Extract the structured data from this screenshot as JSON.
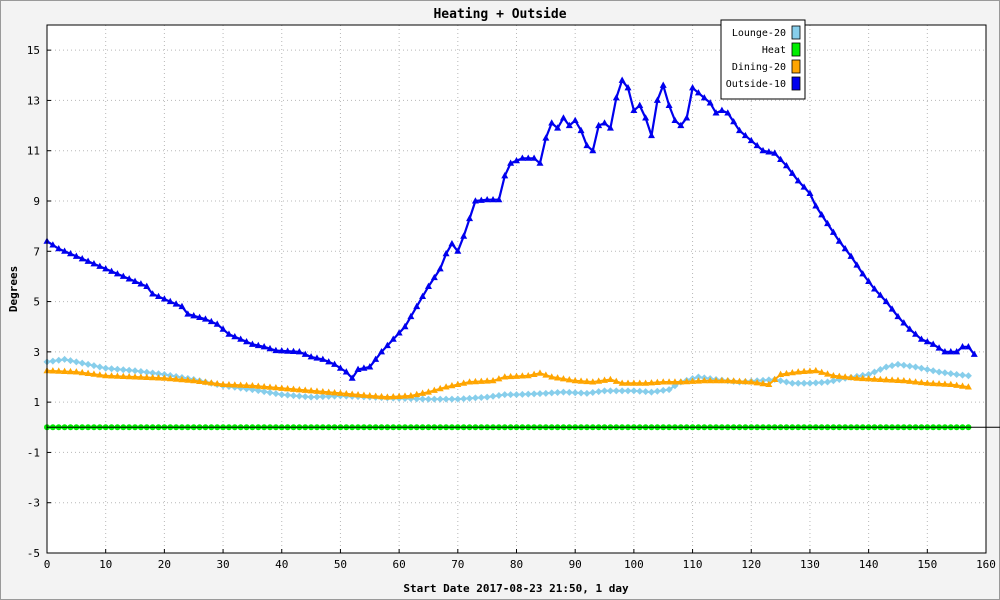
{
  "chart_data": {
    "type": "line",
    "title": "Heating + Outside",
    "xlabel": "Start Date 2017-08-23 21:50, 1 day",
    "ylabel": "Degrees",
    "xlim": [
      0,
      160
    ],
    "ylim": [
      -5,
      16
    ],
    "x_ticks": [
      0,
      10,
      20,
      30,
      40,
      50,
      60,
      70,
      80,
      90,
      100,
      110,
      120,
      130,
      140,
      150,
      160
    ],
    "y_ticks": [
      -5,
      -3,
      -1,
      1,
      3,
      5,
      7,
      9,
      11,
      13,
      15
    ],
    "grid": true,
    "legend_position": "top-right",
    "series": [
      {
        "name": "Lounge-20",
        "color": "#87ceeb",
        "points": [
          [
            0,
            2.6
          ],
          [
            3,
            2.7
          ],
          [
            5,
            2.6
          ],
          [
            10,
            2.35
          ],
          [
            15,
            2.25
          ],
          [
            20,
            2.1
          ],
          [
            25,
            1.9
          ],
          [
            30,
            1.65
          ],
          [
            35,
            1.5
          ],
          [
            40,
            1.3
          ],
          [
            45,
            1.2
          ],
          [
            50,
            1.25
          ],
          [
            55,
            1.2
          ],
          [
            60,
            1.15
          ],
          [
            65,
            1.12
          ],
          [
            70,
            1.12
          ],
          [
            75,
            1.2
          ],
          [
            78,
            1.3
          ],
          [
            80,
            1.3
          ],
          [
            85,
            1.35
          ],
          [
            88,
            1.4
          ],
          [
            92,
            1.35
          ],
          [
            95,
            1.45
          ],
          [
            100,
            1.45
          ],
          [
            103,
            1.4
          ],
          [
            106,
            1.5
          ],
          [
            108,
            1.8
          ],
          [
            111,
            2.0
          ],
          [
            114,
            1.9
          ],
          [
            118,
            1.8
          ],
          [
            121,
            1.85
          ],
          [
            124,
            1.9
          ],
          [
            127,
            1.75
          ],
          [
            130,
            1.75
          ],
          [
            133,
            1.8
          ],
          [
            136,
            1.95
          ],
          [
            140,
            2.1
          ],
          [
            143,
            2.4
          ],
          [
            145,
            2.5
          ],
          [
            148,
            2.4
          ],
          [
            152,
            2.2
          ],
          [
            155,
            2.1
          ],
          [
            157,
            2.05
          ]
        ]
      },
      {
        "name": "Heat",
        "color": "#00ee00",
        "points": [
          [
            0,
            0
          ],
          [
            157,
            0
          ]
        ]
      },
      {
        "name": "Dining-20",
        "color": "#ffa500",
        "points": [
          [
            0,
            2.25
          ],
          [
            5,
            2.2
          ],
          [
            10,
            2.05
          ],
          [
            15,
            2.0
          ],
          [
            20,
            1.95
          ],
          [
            25,
            1.85
          ],
          [
            30,
            1.7
          ],
          [
            35,
            1.65
          ],
          [
            40,
            1.55
          ],
          [
            45,
            1.45
          ],
          [
            50,
            1.35
          ],
          [
            55,
            1.25
          ],
          [
            58,
            1.2
          ],
          [
            62,
            1.25
          ],
          [
            65,
            1.4
          ],
          [
            68,
            1.6
          ],
          [
            72,
            1.8
          ],
          [
            76,
            1.85
          ],
          [
            78,
            2.0
          ],
          [
            82,
            2.05
          ],
          [
            84,
            2.15
          ],
          [
            86,
            2.0
          ],
          [
            90,
            1.85
          ],
          [
            93,
            1.8
          ],
          [
            96,
            1.9
          ],
          [
            98,
            1.75
          ],
          [
            102,
            1.75
          ],
          [
            105,
            1.8
          ],
          [
            108,
            1.8
          ],
          [
            112,
            1.85
          ],
          [
            116,
            1.85
          ],
          [
            120,
            1.8
          ],
          [
            123,
            1.7
          ],
          [
            125,
            2.1
          ],
          [
            128,
            2.2
          ],
          [
            131,
            2.25
          ],
          [
            134,
            2.05
          ],
          [
            138,
            1.95
          ],
          [
            142,
            1.9
          ],
          [
            146,
            1.85
          ],
          [
            150,
            1.75
          ],
          [
            154,
            1.7
          ],
          [
            157,
            1.6
          ]
        ]
      },
      {
        "name": "Outside-10",
        "color": "#0000ee",
        "points": [
          [
            0,
            7.4
          ],
          [
            2,
            7.1
          ],
          [
            5,
            6.8
          ],
          [
            8,
            6.5
          ],
          [
            11,
            6.2
          ],
          [
            14,
            5.9
          ],
          [
            17,
            5.6
          ],
          [
            18,
            5.3
          ],
          [
            21,
            5.0
          ],
          [
            23,
            4.8
          ],
          [
            24,
            4.5
          ],
          [
            27,
            4.3
          ],
          [
            29,
            4.1
          ],
          [
            31,
            3.7
          ],
          [
            33,
            3.5
          ],
          [
            35,
            3.3
          ],
          [
            37,
            3.2
          ],
          [
            39,
            3.05
          ],
          [
            43,
            3.0
          ],
          [
            45,
            2.8
          ],
          [
            47,
            2.7
          ],
          [
            49,
            2.5
          ],
          [
            51,
            2.2
          ],
          [
            52,
            1.95
          ],
          [
            53,
            2.3
          ],
          [
            55,
            2.4
          ],
          [
            57,
            3.0
          ],
          [
            59,
            3.5
          ],
          [
            61,
            4.0
          ],
          [
            63,
            4.8
          ],
          [
            65,
            5.6
          ],
          [
            67,
            6.3
          ],
          [
            68,
            6.9
          ],
          [
            69,
            7.3
          ],
          [
            70,
            7.0
          ],
          [
            71,
            7.6
          ],
          [
            72,
            8.3
          ],
          [
            73,
            9.0
          ],
          [
            75,
            9.05
          ],
          [
            77,
            9.05
          ],
          [
            78,
            10.0
          ],
          [
            79,
            10.5
          ],
          [
            81,
            10.7
          ],
          [
            83,
            10.7
          ],
          [
            84,
            10.5
          ],
          [
            85,
            11.5
          ],
          [
            86,
            12.1
          ],
          [
            87,
            11.9
          ],
          [
            88,
            12.3
          ],
          [
            89,
            12.0
          ],
          [
            90,
            12.2
          ],
          [
            91,
            11.8
          ],
          [
            92,
            11.2
          ],
          [
            93,
            11.0
          ],
          [
            94,
            12.0
          ],
          [
            95,
            12.1
          ],
          [
            96,
            11.9
          ],
          [
            97,
            13.1
          ],
          [
            98,
            13.8
          ],
          [
            99,
            13.5
          ],
          [
            100,
            12.6
          ],
          [
            101,
            12.8
          ],
          [
            102,
            12.3
          ],
          [
            103,
            11.6
          ],
          [
            104,
            13.0
          ],
          [
            105,
            13.6
          ],
          [
            106,
            12.8
          ],
          [
            107,
            12.2
          ],
          [
            108,
            12.0
          ],
          [
            109,
            12.3
          ],
          [
            110,
            13.5
          ],
          [
            112,
            13.1
          ],
          [
            113,
            12.9
          ],
          [
            114,
            12.5
          ],
          [
            115,
            12.6
          ],
          [
            116,
            12.5
          ],
          [
            118,
            11.8
          ],
          [
            120,
            11.4
          ],
          [
            122,
            11.0
          ],
          [
            124,
            10.9
          ],
          [
            126,
            10.4
          ],
          [
            128,
            9.8
          ],
          [
            130,
            9.3
          ],
          [
            131,
            8.8
          ],
          [
            133,
            8.1
          ],
          [
            135,
            7.4
          ],
          [
            137,
            6.8
          ],
          [
            139,
            6.1
          ],
          [
            141,
            5.5
          ],
          [
            143,
            5.0
          ],
          [
            145,
            4.4
          ],
          [
            147,
            3.9
          ],
          [
            149,
            3.5
          ],
          [
            151,
            3.3
          ],
          [
            153,
            3.0
          ],
          [
            155,
            3.0
          ],
          [
            156,
            3.2
          ],
          [
            157,
            3.2
          ],
          [
            158,
            2.9
          ]
        ]
      }
    ]
  }
}
